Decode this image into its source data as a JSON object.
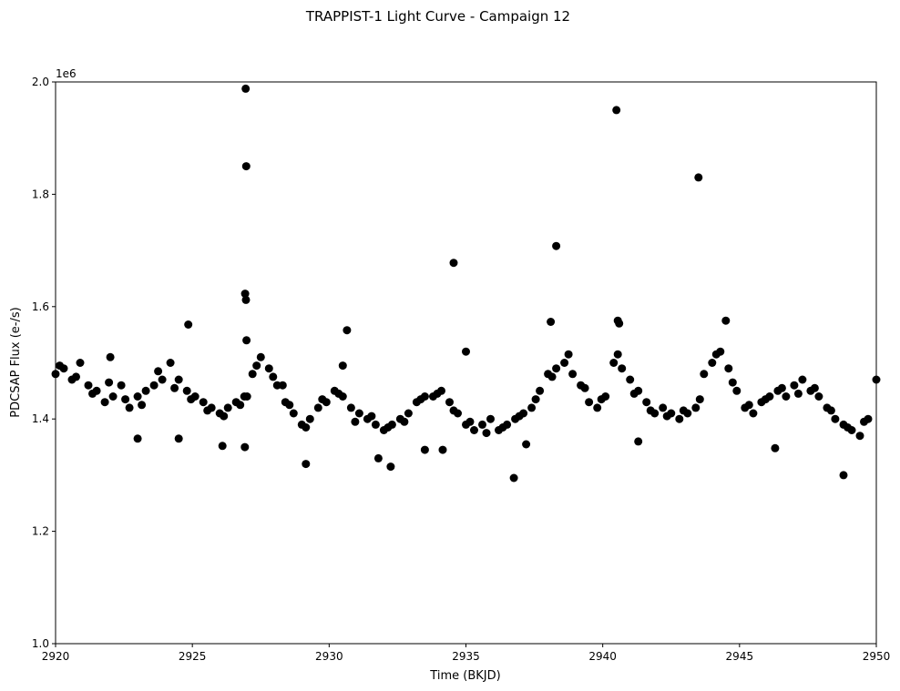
{
  "chart_data": {
    "type": "scatter",
    "title": "TRAPPIST-1 Light Curve - Campaign 12",
    "xlabel": "Time (BKJD)",
    "ylabel": "PDCSAP Flux (e-/s)",
    "y_offset_label": "1e6",
    "xlim": [
      2920,
      2950
    ],
    "ylim": [
      1000000,
      2000000
    ],
    "xticks": [
      2920,
      2925,
      2930,
      2935,
      2940,
      2945,
      2950
    ],
    "xtick_labels": [
      "2920",
      "2925",
      "2930",
      "2935",
      "2940",
      "2945",
      "2950"
    ],
    "yticks": [
      1000000,
      1200000,
      1400000,
      1600000,
      1800000,
      2000000
    ],
    "ytick_labels": [
      "1.0",
      "1.2",
      "1.4",
      "1.6",
      "1.8",
      "2.0"
    ],
    "grid": false,
    "marker_color": "#000000",
    "series": [
      {
        "x": [
          2920.0,
          2920.3,
          2920.6,
          2920.9,
          2921.2,
          2921.5,
          2921.8,
          2922.1,
          2922.4,
          2922.7,
          2923.0,
          2923.3,
          2923.6,
          2923.9,
          2924.2,
          2924.5,
          2924.8,
          2925.1,
          2925.4,
          2925.7,
          2926.0,
          2926.3,
          2926.6,
          2926.9,
          2927.2,
          2927.5,
          2927.8,
          2928.1,
          2928.4,
          2928.7,
          2929.0,
          2929.3,
          2929.6,
          2929.9,
          2930.2,
          2930.5,
          2930.8,
          2931.1,
          2931.4,
          2931.7,
          2932.0,
          2932.3,
          2932.6,
          2932.9,
          2933.2,
          2933.5,
          2933.8,
          2934.1,
          2934.4,
          2934.7,
          2935.0,
          2935.3,
          2935.6,
          2935.9,
          2936.2,
          2936.5,
          2936.8,
          2937.1,
          2937.4,
          2937.7,
          2938.0,
          2938.3,
          2938.6,
          2938.9,
          2939.2,
          2939.5,
          2939.8,
          2940.1,
          2940.4,
          2940.7,
          2941.0,
          2941.3,
          2941.6,
          2941.9,
          2942.2,
          2942.5,
          2942.8,
          2943.1,
          2943.4,
          2943.7,
          2944.0,
          2944.3,
          2944.6,
          2944.9,
          2945.2,
          2945.5,
          2945.8,
          2946.1,
          2946.4,
          2946.7,
          2947.0,
          2947.3,
          2947.6,
          2947.9,
          2948.2,
          2948.5,
          2948.8,
          2949.1,
          2949.4,
          2949.7,
          2950.0,
          2920.15,
          2920.75,
          2921.35,
          2921.95,
          2922.55,
          2923.15,
          2923.75,
          2924.35,
          2924.95,
          2925.55,
          2926.15,
          2926.75,
          2927.35,
          2927.95,
          2928.55,
          2929.15,
          2929.75,
          2930.35,
          2930.95,
          2931.55,
          2932.15,
          2932.75,
          2933.35,
          2933.95,
          2934.55,
          2935.15,
          2935.75,
          2936.35,
          2936.95,
          2937.55,
          2938.15,
          2938.75,
          2939.35,
          2939.95,
          2940.55,
          2941.15,
          2941.75,
          2942.35,
          2942.95,
          2943.55,
          2944.15,
          2944.75,
          2945.35,
          2945.95,
          2946.55,
          2947.15,
          2947.75,
          2948.35,
          2948.95,
          2949.55,
          2926.95,
          2926.97,
          2926.93,
          2926.96,
          2926.98,
          2926.92,
          2934.55,
          2938.3,
          2938.1,
          2940.5,
          2940.55,
          2940.6,
          2943.5,
          2930.65,
          2924.85,
          2944.5,
          2929.15,
          2932.25,
          2936.75,
          2934.15,
          2935.0,
          2948.8,
          2926.1,
          2946.3,
          2928.3,
          2922.0,
          2923.0,
          2924.5,
          2941.3,
          2933.5,
          2930.5,
          2927.0,
          2937.2,
          2931.8
        ],
        "y": [
          1480000,
          1490000,
          1470000,
          1500000,
          1460000,
          1450000,
          1430000,
          1440000,
          1460000,
          1420000,
          1440000,
          1450000,
          1460000,
          1470000,
          1500000,
          1470000,
          1450000,
          1440000,
          1430000,
          1420000,
          1410000,
          1420000,
          1430000,
          1440000,
          1480000,
          1510000,
          1490000,
          1460000,
          1430000,
          1410000,
          1390000,
          1400000,
          1420000,
          1430000,
          1450000,
          1440000,
          1420000,
          1410000,
          1400000,
          1390000,
          1380000,
          1390000,
          1400000,
          1410000,
          1430000,
          1440000,
          1440000,
          1450000,
          1430000,
          1410000,
          1390000,
          1380000,
          1390000,
          1400000,
          1380000,
          1390000,
          1400000,
          1410000,
          1420000,
          1450000,
          1480000,
          1490000,
          1500000,
          1480000,
          1460000,
          1430000,
          1420000,
          1440000,
          1500000,
          1490000,
          1470000,
          1450000,
          1430000,
          1410000,
          1420000,
          1410000,
          1400000,
          1410000,
          1420000,
          1480000,
          1500000,
          1520000,
          1490000,
          1450000,
          1420000,
          1410000,
          1430000,
          1440000,
          1450000,
          1440000,
          1460000,
          1470000,
          1450000,
          1440000,
          1420000,
          1400000,
          1390000,
          1380000,
          1370000,
          1400000,
          1470000,
          1495000,
          1475000,
          1445000,
          1465000,
          1435000,
          1425000,
          1485000,
          1455000,
          1435000,
          1415000,
          1405000,
          1425000,
          1495000,
          1475000,
          1425000,
          1385000,
          1435000,
          1445000,
          1395000,
          1405000,
          1385000,
          1395000,
          1435000,
          1445000,
          1415000,
          1395000,
          1375000,
          1385000,
          1405000,
          1435000,
          1475000,
          1515000,
          1455000,
          1435000,
          1515000,
          1445000,
          1415000,
          1405000,
          1415000,
          1435000,
          1515000,
          1465000,
          1425000,
          1435000,
          1455000,
          1445000,
          1455000,
          1415000,
          1385000,
          1395000,
          1988000,
          1850000,
          1623000,
          1612000,
          1540000,
          1350000,
          1678000,
          1708000,
          1573000,
          1950000,
          1575000,
          1570000,
          1830000,
          1558000,
          1568000,
          1575000,
          1320000,
          1315000,
          1295000,
          1345000,
          1520000,
          1300000,
          1352000,
          1348000,
          1460000,
          1510000,
          1365000,
          1365000,
          1360000,
          1345000,
          1495000,
          1440000,
          1355000,
          1330000
        ]
      }
    ]
  }
}
